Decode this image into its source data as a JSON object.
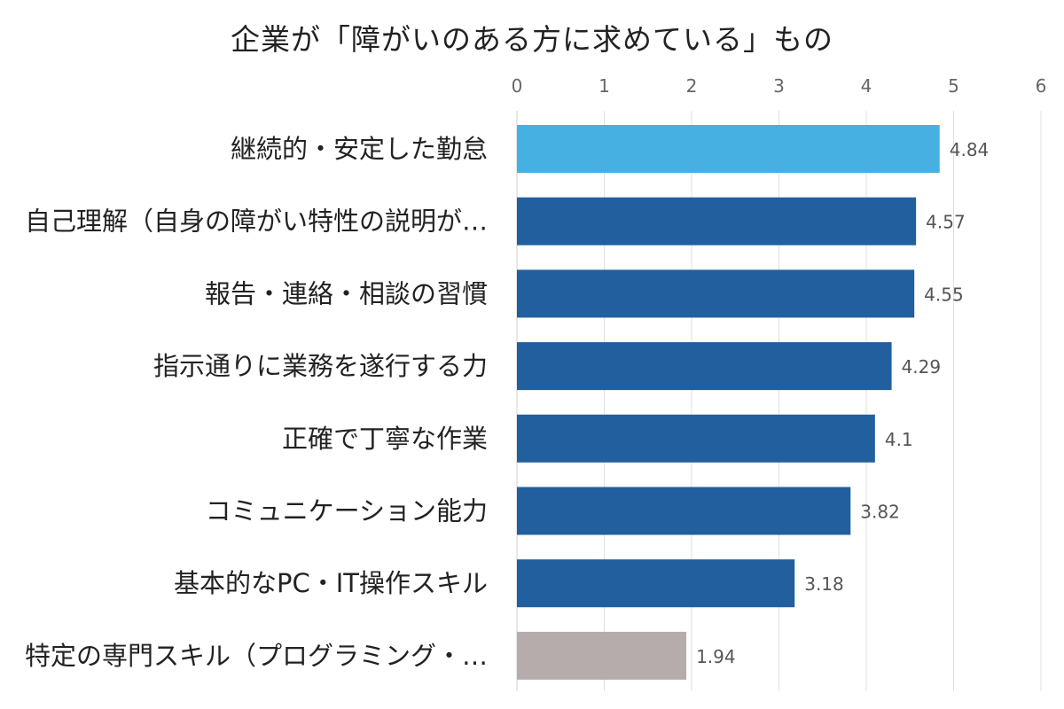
{
  "chart_data": {
    "type": "bar",
    "orientation": "horizontal",
    "title": "企業が「障がいのある方に求めている」もの",
    "xlabel": "",
    "ylabel": "",
    "xlim": [
      0,
      6
    ],
    "ticks": [
      "0",
      "1",
      "2",
      "3",
      "4",
      "5",
      "6"
    ],
    "tick_position": "top",
    "grid": true,
    "categories": [
      "継続的・安定した勤怠",
      "自己理解（自身の障がい特性の説明が…",
      "報告・連絡・相談の習慣",
      "指示通りに業務を遂行する力",
      "正確で丁寧な作業",
      "コミュニケーション能力",
      "基本的なPC・IT操作スキル",
      "特定の専門スキル（プログラミング・…"
    ],
    "values": [
      4.84,
      4.57,
      4.55,
      4.29,
      4.1,
      3.82,
      3.18,
      1.94
    ],
    "value_labels": [
      "4.84",
      "4.57",
      "4.55",
      "4.29",
      "4.1",
      "3.82",
      "3.18",
      "1.94"
    ],
    "bar_colors": [
      "#47b0e2",
      "#225f9f",
      "#225f9f",
      "#225f9f",
      "#225f9f",
      "#225f9f",
      "#225f9f",
      "#b4adab"
    ]
  }
}
